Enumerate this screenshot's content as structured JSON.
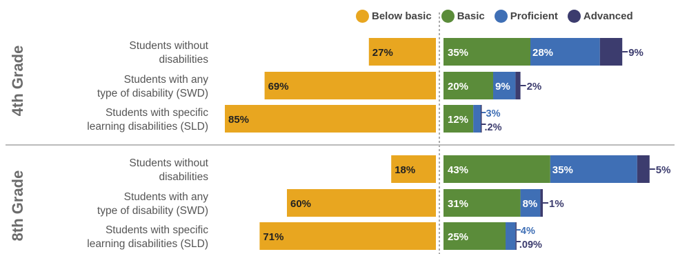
{
  "chart_data": {
    "type": "bar",
    "legend": [
      {
        "label": "Below basic",
        "color": "#E8A620"
      },
      {
        "label": "Basic",
        "color": "#5B8C3A"
      },
      {
        "label": "Proficient",
        "color": "#3F6FB5"
      },
      {
        "label": "Advanced",
        "color": "#3C3C6E"
      }
    ],
    "groups": [
      {
        "label": "4th Grade",
        "rows": [
          {
            "label": [
              "Students without",
              "disabilities"
            ],
            "below_basic": 27,
            "basic": 35,
            "proficient": 28,
            "advanced": 9,
            "labels": {
              "below_basic": "27%",
              "basic": "35%",
              "proficient": "28%",
              "advanced": "9%"
            }
          },
          {
            "label": [
              "Students with any",
              "type of disability (SWD)"
            ],
            "below_basic": 69,
            "basic": 20,
            "proficient": 9,
            "advanced": 2,
            "labels": {
              "below_basic": "69%",
              "basic": "20%",
              "proficient": "9%",
              "advanced": "2%"
            }
          },
          {
            "label": [
              "Students with specific",
              "learning disabilities (SLD)"
            ],
            "below_basic": 85,
            "basic": 12,
            "proficient": 3,
            "advanced": 0.2,
            "labels": {
              "below_basic": "85%",
              "basic": "12%",
              "proficient": "3%",
              "advanced": ".2%"
            }
          }
        ]
      },
      {
        "label": "8th Grade",
        "rows": [
          {
            "label": [
              "Students without",
              "disabilities"
            ],
            "below_basic": 18,
            "basic": 43,
            "proficient": 35,
            "advanced": 5,
            "labels": {
              "below_basic": "18%",
              "basic": "43%",
              "proficient": "35%",
              "advanced": "5%"
            }
          },
          {
            "label": [
              "Students with any",
              "type of disability (SWD)"
            ],
            "below_basic": 60,
            "basic": 31,
            "proficient": 8,
            "advanced": 1,
            "labels": {
              "below_basic": "60%",
              "basic": "31%",
              "proficient": "8%",
              "advanced": "1%"
            }
          },
          {
            "label": [
              "Students with specific",
              "learning disabilities (SLD)"
            ],
            "below_basic": 71,
            "basic": 25,
            "proficient": 4,
            "advanced": 0.09,
            "labels": {
              "below_basic": "71%",
              "basic": "25%",
              "proficient": "4%",
              "advanced": ".09%"
            }
          }
        ]
      }
    ]
  }
}
